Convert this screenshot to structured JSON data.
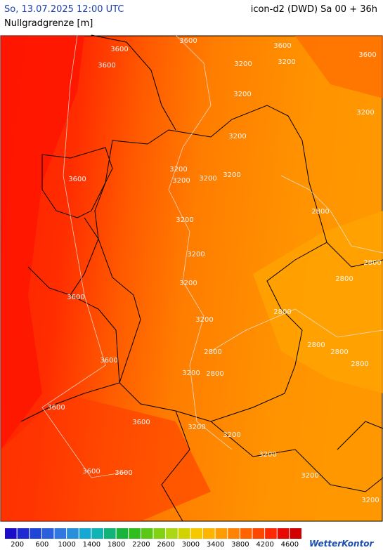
{
  "header": {
    "valid_time": "So, 13.07.2025 12:00 UTC",
    "model_run": "icon-d2 (DWD) Sa 00 + 36h",
    "parameter": "Nullgradgrenze [m]"
  },
  "map": {
    "contour_labels": [
      "3600",
      "3600",
      "3600",
      "3600",
      "3600",
      "3600",
      "3600",
      "3600",
      "3600",
      "3600",
      "3600",
      "3600",
      "3200",
      "3200",
      "3200",
      "3200",
      "3200",
      "3200",
      "3200",
      "3200",
      "3200",
      "3200",
      "3200",
      "3200",
      "3200",
      "3200",
      "3200",
      "3200",
      "3200",
      "3200",
      "3200",
      "2800",
      "2800",
      "2800",
      "2800",
      "2800",
      "2800",
      "2800",
      "2800",
      "2800"
    ]
  },
  "colorbar": {
    "colors": [
      "#1a0cc8",
      "#1e2ad2",
      "#2046d8",
      "#2a60dc",
      "#3078e0",
      "#2890da",
      "#14a8d2",
      "#10b4b4",
      "#10b478",
      "#18b43c",
      "#30be1e",
      "#5ac814",
      "#82d214",
      "#aad814",
      "#d2d200",
      "#f5c800",
      "#ffb400",
      "#ff9c00",
      "#ff8200",
      "#ff6400",
      "#ff4600",
      "#ff2800",
      "#e80a00",
      "#d20000"
    ],
    "extra_colors": [
      "#b40014",
      "#9c0046",
      "#a00078",
      "#b400b4"
    ],
    "ticks": [
      200,
      600,
      1000,
      1400,
      1800,
      2200,
      2600,
      3000,
      3400,
      3800,
      4200,
      4600
    ]
  },
  "footer": {
    "logo": "WetterKontor"
  }
}
